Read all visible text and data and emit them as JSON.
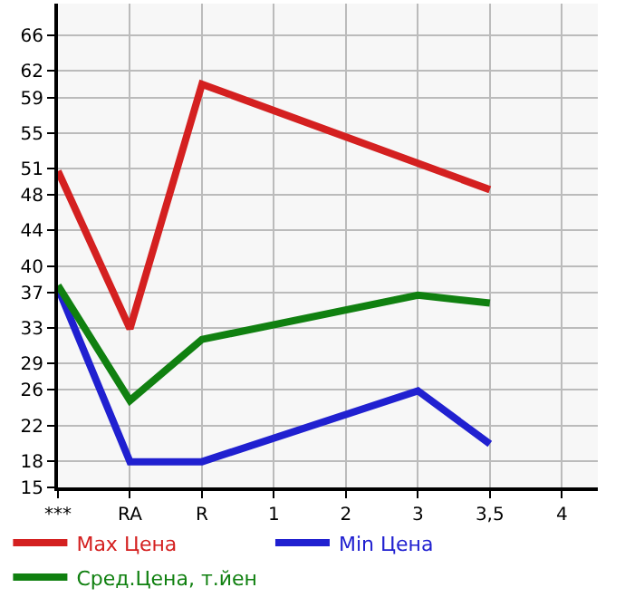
{
  "chart_data": {
    "type": "line",
    "categories": [
      "***",
      "RA",
      "R",
      "1",
      "2",
      "3",
      "3,5",
      "4"
    ],
    "series": [
      {
        "name": "Max Цена",
        "color": "#d42020",
        "values": [
          50.7,
          32.9,
          60.5,
          null,
          null,
          null,
          48.6,
          null
        ]
      },
      {
        "name": "Min Цена",
        "color": "#2020d0",
        "values": [
          37.5,
          17.9,
          17.9,
          null,
          null,
          25.9,
          19.9,
          null
        ]
      },
      {
        "name": "Сред.Цена, т.йен",
        "color": "#108010",
        "values": [
          37.8,
          24.8,
          31.7,
          null,
          null,
          36.7,
          35.8,
          null
        ]
      }
    ],
    "ylim": [
      15,
      69.6
    ],
    "yticks": [
      15,
      18,
      22,
      26,
      29,
      33,
      37,
      40,
      44,
      48,
      51,
      55,
      59,
      62,
      66
    ],
    "grid": true,
    "legend": "bottom",
    "marker": "none",
    "line_style": "solid"
  }
}
